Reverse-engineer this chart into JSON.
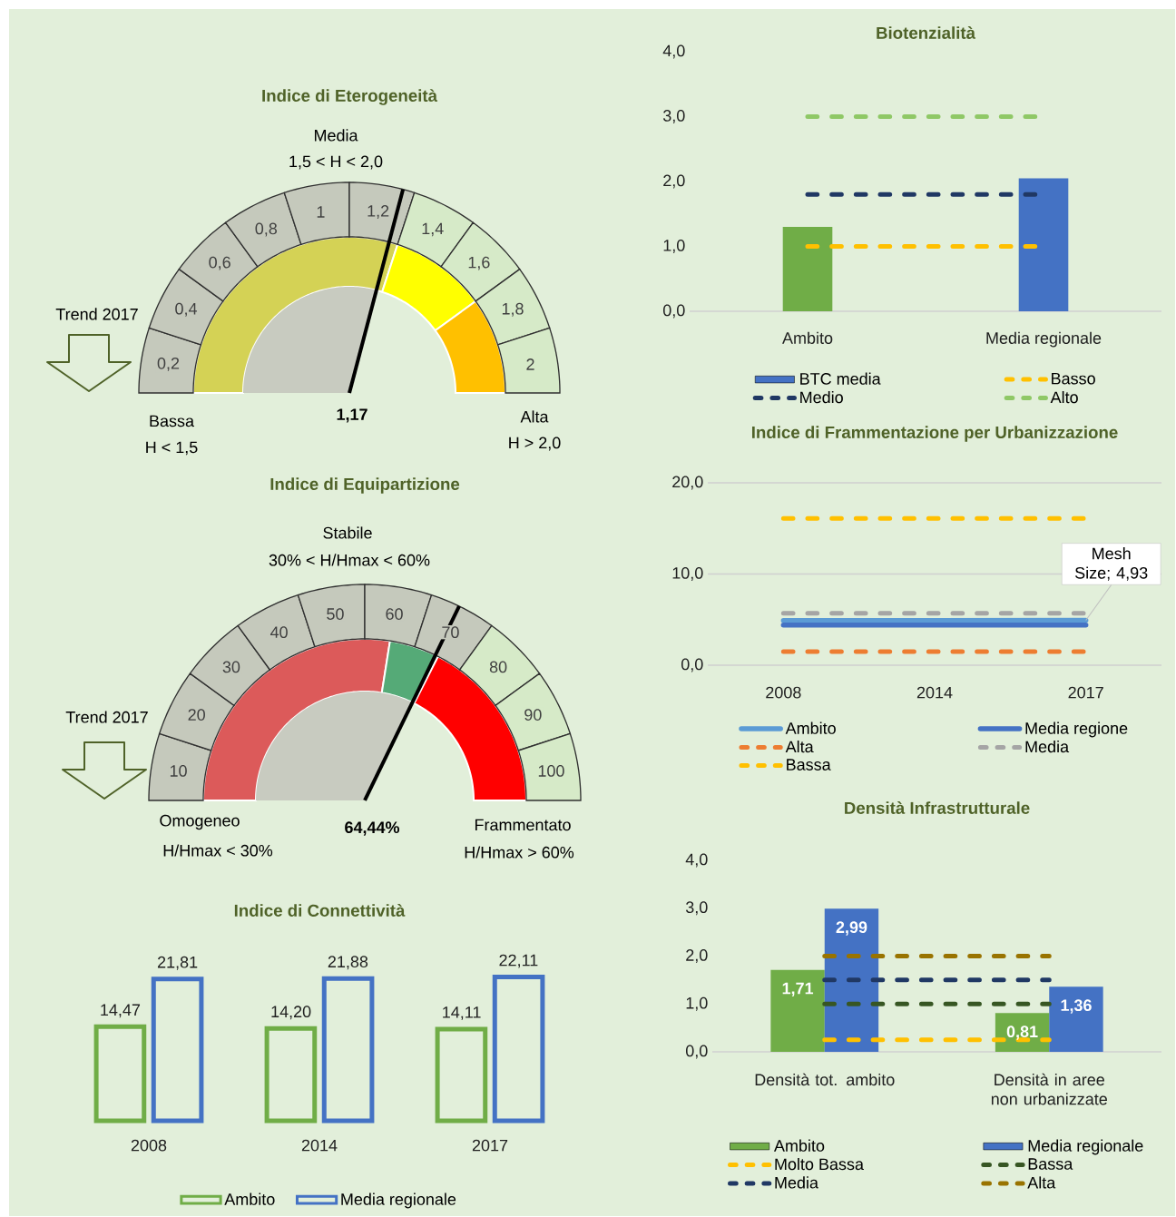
{
  "chart_data": [
    {
      "type": "other",
      "title": "Indice di Eterogeneità",
      "categories": [
        "0,2",
        "0,4",
        "0,6",
        "0,8",
        "1",
        "1,2",
        "1,4",
        "1,6",
        "1,8",
        "2"
      ],
      "annotations": [
        "Media",
        "1,5 < H < 2,0",
        "Bassa",
        "H < 1,5",
        "Alta",
        "H > 2,0",
        "1,17",
        "Trend 2017"
      ]
    },
    {
      "type": "other",
      "title": "Indice di Equipartizione",
      "categories": [
        "10",
        "20",
        "30",
        "40",
        "50",
        "60",
        "70",
        "80",
        "90",
        "100"
      ],
      "annotations": [
        "Stabile",
        "30% < H/Hmax < 60%",
        "Omogeneo",
        "H/Hmax < 30%",
        "Frammentato",
        "H/Hmax > 60%",
        "64,44%",
        "Trend 2017"
      ]
    },
    {
      "type": "bar",
      "title": "Indice di Connettività",
      "categories": [
        "2008",
        "2014",
        "2017"
      ],
      "series": [
        {
          "name": "Ambito",
          "color": "#70ad47",
          "values": [
            14.47,
            14.2,
            14.11
          ],
          "value_labels": [
            "14,47",
            "14,20",
            "14,11"
          ]
        },
        {
          "name": "Media regionale",
          "color": "#4472c4",
          "values": [
            21.81,
            21.88,
            22.11
          ],
          "value_labels": [
            "21,81",
            "21,88",
            "22,11"
          ]
        }
      ],
      "tick_labels": "x",
      "legend": "bottom"
    },
    {
      "type": "bar",
      "title": "Biotenzialità",
      "categories": [
        "Ambito",
        "Media regionale"
      ],
      "series": [
        {
          "name": "BTC media",
          "color": "#4472c4",
          "colors": [
            "#70ad47",
            "#4472c4"
          ],
          "values": [
            1.3,
            2.05
          ]
        },
        {
          "name": "Basso",
          "type": "line",
          "color": "#ffc000",
          "line_style": "dashed",
          "values": [
            1.0,
            1.0
          ]
        },
        {
          "name": "Medio",
          "type": "line",
          "color": "#203864",
          "line_style": "dashed",
          "values": [
            1.8,
            1.8
          ]
        },
        {
          "name": "Alto",
          "type": "line",
          "color": "#8fc866",
          "line_style": "dashed",
          "values": [
            3.0,
            3.0
          ]
        }
      ],
      "ylim": [
        0,
        4
      ],
      "yticks": [
        {
          "value": 0,
          "label": "0,0"
        },
        {
          "value": 1,
          "label": "1,0"
        },
        {
          "value": 2,
          "label": "2,0"
        },
        {
          "value": 3,
          "label": "3,0"
        },
        {
          "value": 4,
          "label": "4,0"
        }
      ],
      "legend": "bottom"
    },
    {
      "type": "line",
      "title": "Indice di Frammentazione per Urbanizzazione",
      "categories": [
        "2008",
        "2014",
        "2017"
      ],
      "series": [
        {
          "name": "Ambito",
          "color": "#5b9bd5",
          "values": [
            4.9,
            4.9,
            4.93
          ]
        },
        {
          "name": "Media regione",
          "color": "#4472c4",
          "values": [
            4.4,
            4.4,
            4.4
          ]
        },
        {
          "name": "Alta",
          "color": "#ed7d31",
          "line_style": "dashed",
          "values": [
            1.5,
            1.5,
            1.5
          ]
        },
        {
          "name": "Media",
          "color": "#a5a5a5",
          "line_style": "dashed",
          "values": [
            5.7,
            5.7,
            5.7
          ]
        },
        {
          "name": "Bassa",
          "color": "#ffc000",
          "line_style": "dashed",
          "values": [
            16.1,
            16.1,
            16.1
          ]
        }
      ],
      "ylim": [
        0,
        20
      ],
      "yticks": [
        {
          "value": 0,
          "label": "0,0"
        },
        {
          "value": 10,
          "label": "10,0"
        },
        {
          "value": 20,
          "label": "20,0"
        }
      ],
      "grid": "y",
      "legend": "bottom",
      "annotations": [
        {
          "text": "Mesh Size; 4,93",
          "x": "2017",
          "y": 4.93
        }
      ]
    },
    {
      "type": "bar",
      "title": "Densità Infrastrutturale",
      "categories": [
        "Densità tot. ambito",
        "Densità in aree non urbanizzate"
      ],
      "series": [
        {
          "name": "Ambito",
          "color": "#70ad47",
          "values": [
            1.71,
            0.81
          ],
          "value_labels": [
            "1,71",
            "0,81"
          ]
        },
        {
          "name": "Media regionale",
          "color": "#4472c4",
          "values": [
            2.99,
            1.36
          ],
          "value_labels": [
            "2,99",
            "1,36"
          ]
        },
        {
          "name": "Molto Bassa",
          "type": "line",
          "color": "#ffc000",
          "line_style": "dashed",
          "values": [
            0.25,
            0.25
          ]
        },
        {
          "name": "Bassa",
          "type": "line",
          "color": "#375623",
          "line_style": "dashed",
          "values": [
            1.0,
            1.0
          ]
        },
        {
          "name": "Media",
          "type": "line",
          "color": "#203864",
          "line_style": "dashed",
          "values": [
            1.5,
            1.5
          ]
        },
        {
          "name": "Alta",
          "type": "line",
          "color": "#997300",
          "line_style": "dashed",
          "values": [
            2.0,
            2.0
          ]
        }
      ],
      "ylim": [
        0,
        4
      ],
      "yticks": [
        {
          "value": 0,
          "label": "0,0"
        },
        {
          "value": 1,
          "label": "1,0"
        },
        {
          "value": 2,
          "label": "2,0"
        },
        {
          "value": 3,
          "label": "3,0"
        },
        {
          "value": 4,
          "label": "4,0"
        }
      ],
      "legend": "bottom"
    }
  ]
}
